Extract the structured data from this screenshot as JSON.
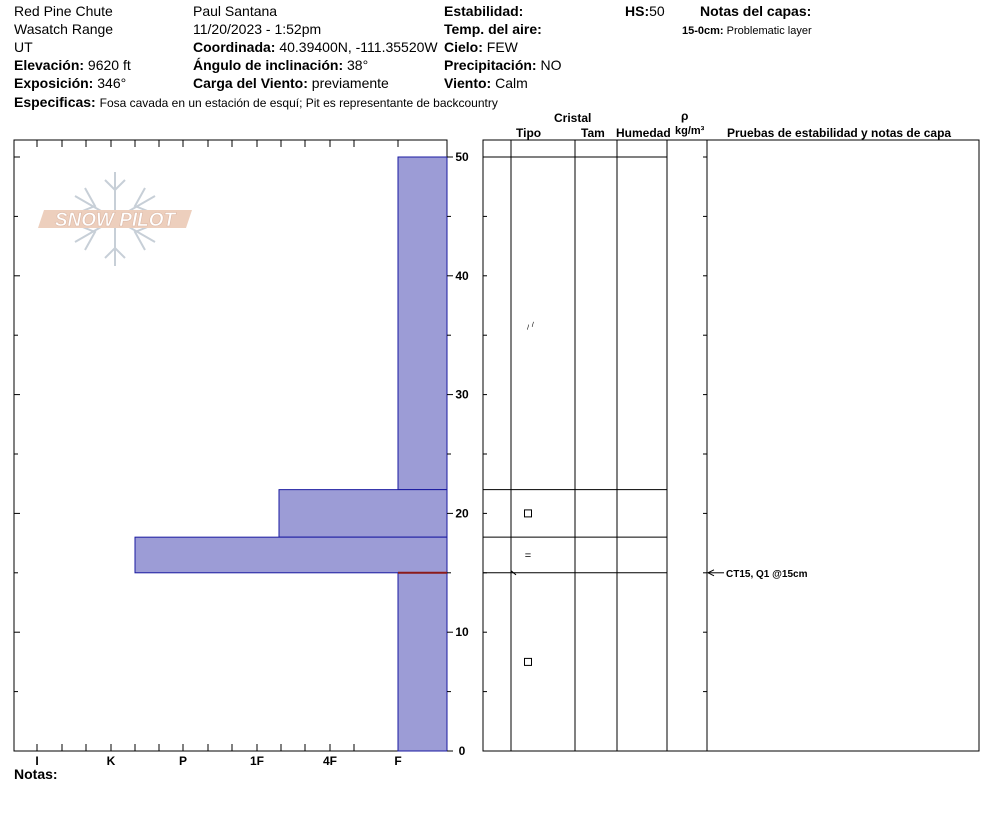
{
  "header": {
    "location": "Red Pine Chute",
    "range": "Wasatch Range",
    "state": "UT",
    "elevation_label": "Elevación:",
    "elevation_value": "9620 ft",
    "aspect_label": "Exposición:",
    "aspect_value": "346°",
    "specifics_label": "Especificas:",
    "specifics_value": "Fosa cavada en un estación de esquí; Pit es representante de backcountry",
    "observer": "Paul Santana",
    "datetime": "11/20/2023 - 1:52pm",
    "coord_label": "Coordinada:",
    "coord_value": "40.39400N, -111.35520W",
    "slope_label": "Ángulo de inclinación:",
    "slope_value": "38°",
    "wind_load_label": "Carga del Viento:",
    "wind_load_value": "previamente",
    "stability_label": "Estabilidad:",
    "air_temp_label": "Temp. del aire:",
    "sky_label": "Cielo:",
    "sky_value": "FEW",
    "precip_label": "Precipitación:",
    "precip_value": "NO",
    "wind_label": "Viento:",
    "wind_value": "Calm",
    "hs_label": "HS:",
    "hs_value": "50",
    "layer_notes_label": "Notas del capas:",
    "layer_note_range": "15-0cm:",
    "layer_note_text": "Problematic layer",
    "notes_label": "Notas:"
  },
  "table": {
    "crystal_header": "Cristal",
    "type_header": "Tipo",
    "size_header": "Tam",
    "moisture_header": "Humedad",
    "density_symbol": "ρ",
    "density_unit": "kg/m³",
    "tests_header": "Pruebas de estabilidad y notas de capa",
    "test_result": "CT15, Q1 @15cm"
  },
  "logo": {
    "text": "SNOW PILOT"
  },
  "colors": {
    "bar_fill": "#9c9cd6",
    "bar_stroke": "#1a1aa0",
    "weak_layer": "#8b1a1a"
  },
  "chart_data": {
    "type": "bar",
    "title": "",
    "ylabel": "",
    "ylim": [
      0,
      50
    ],
    "y_ticks": [
      0,
      10,
      20,
      30,
      40,
      50
    ],
    "hardness_scale": [
      "I",
      "K",
      "P",
      "1F",
      "4F",
      "F"
    ],
    "layers": [
      {
        "bottom": 22,
        "top": 50,
        "hardness": "F"
      },
      {
        "bottom": 18,
        "top": 22,
        "hardness": "1F-"
      },
      {
        "bottom": 15,
        "top": 18,
        "hardness": "K+"
      },
      {
        "bottom": 0,
        "top": 15,
        "hardness": "F"
      }
    ],
    "weak_layer_depth": 15,
    "layer_boundaries": [
      50,
      22,
      18,
      15
    ],
    "grain_symbols": [
      {
        "depth": 36,
        "symbol": "⸝⸝"
      },
      {
        "depth": 20,
        "symbol": "□"
      },
      {
        "depth": 16.5,
        "symbol": "="
      },
      {
        "depth": 7.5,
        "symbol": "□"
      }
    ],
    "test_depth": 15
  }
}
